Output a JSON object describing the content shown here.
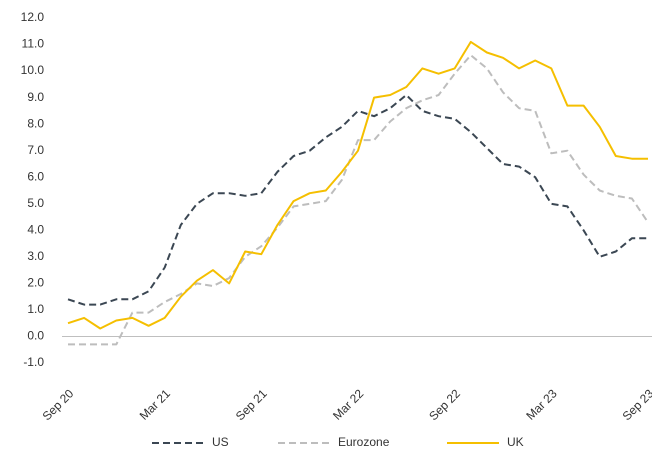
{
  "chart_data": {
    "type": "line",
    "categories": [
      "Sep 20",
      null,
      null,
      null,
      null,
      null,
      "Mar 21",
      null,
      null,
      null,
      null,
      null,
      "Sep 21",
      null,
      null,
      null,
      null,
      null,
      "Mar 22",
      null,
      null,
      null,
      null,
      null,
      "Sep 22",
      null,
      null,
      null,
      null,
      null,
      "Mar 23",
      null,
      null,
      null,
      null,
      null,
      "Sep 23"
    ],
    "series": [
      {
        "name": "US",
        "color": "#3b4753",
        "dash": true,
        "values": [
          1.4,
          1.2,
          1.2,
          1.4,
          1.4,
          1.7,
          2.6,
          4.2,
          5.0,
          5.4,
          5.4,
          5.3,
          5.4,
          6.2,
          6.8,
          7.0,
          7.5,
          7.9,
          8.5,
          8.3,
          8.6,
          9.1,
          8.5,
          8.3,
          8.2,
          7.7,
          7.1,
          6.5,
          6.4,
          6.0,
          5.0,
          4.9,
          4.0,
          3.0,
          3.2,
          3.7,
          3.7
        ]
      },
      {
        "name": "Eurozone",
        "color": "#bdbdbd",
        "dash": true,
        "values": [
          -0.3,
          -0.3,
          -0.3,
          -0.3,
          0.9,
          0.9,
          1.3,
          1.6,
          2.0,
          1.9,
          2.2,
          3.0,
          3.4,
          4.1,
          4.9,
          5.0,
          5.1,
          5.9,
          7.4,
          7.4,
          8.1,
          8.6,
          8.9,
          9.1,
          9.9,
          10.6,
          10.1,
          9.2,
          8.6,
          8.5,
          6.9,
          7.0,
          6.1,
          5.5,
          5.3,
          5.2,
          4.3
        ]
      },
      {
        "name": "UK",
        "color": "#f5bf00",
        "dash": false,
        "values": [
          0.5,
          0.7,
          0.3,
          0.6,
          0.7,
          0.4,
          0.7,
          1.5,
          2.1,
          2.5,
          2.0,
          3.2,
          3.1,
          4.2,
          5.1,
          5.4,
          5.5,
          6.2,
          7.0,
          9.0,
          9.1,
          9.4,
          10.1,
          9.9,
          10.1,
          11.1,
          10.7,
          10.5,
          10.1,
          10.4,
          10.1,
          8.7,
          8.7,
          7.9,
          6.8,
          6.7,
          6.7
        ]
      }
    ],
    "ylim": [
      -1,
      12
    ],
    "yticks": [
      {
        "value": -1,
        "label": "-1.0"
      },
      {
        "value": 0,
        "label": "0.0"
      },
      {
        "value": 1,
        "label": "1.0"
      },
      {
        "value": 2,
        "label": "2.0"
      },
      {
        "value": 3,
        "label": "3.0"
      },
      {
        "value": 4,
        "label": "4.0"
      },
      {
        "value": 5,
        "label": "5.0"
      },
      {
        "value": 6,
        "label": "6.0"
      },
      {
        "value": 7,
        "label": "7.0"
      },
      {
        "value": 8,
        "label": "8.0"
      },
      {
        "value": 9,
        "label": "9.0"
      },
      {
        "value": 10,
        "label": "10.0"
      },
      {
        "value": 11,
        "label": "11.0"
      },
      {
        "value": 12,
        "label": "12.0"
      }
    ],
    "grid": false,
    "legend": "bottom"
  }
}
